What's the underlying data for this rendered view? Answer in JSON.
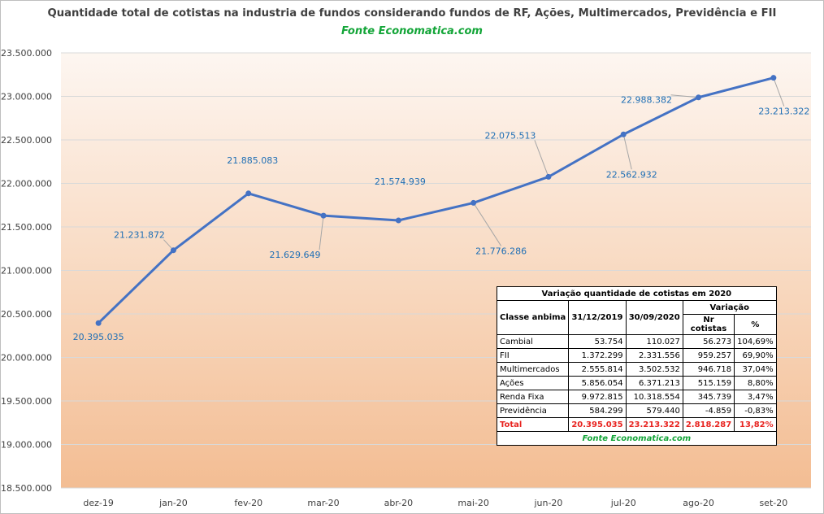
{
  "title": "Quantidade total de cotistas na industria de fundos considerando fundos de RF, Ações, Multimercados, Previdência e FII",
  "subtitle": "Fonte Economatica.com",
  "colors": {
    "line": "#4472c4",
    "label": "#1f6fb5",
    "source_green": "#13a538",
    "total_red": "#e8231f"
  },
  "chart_data": {
    "type": "line",
    "title": "Quantidade total de cotistas na industria de fundos considerando fundos de RF, Ações, Multimercados, Previdência e FII",
    "subtitle": "Fonte Economatica.com",
    "categories": [
      "dez-19",
      "jan-20",
      "fev-20",
      "mar-20",
      "abr-20",
      "mai-20",
      "jun-20",
      "jul-20",
      "ago-20",
      "set-20"
    ],
    "values": [
      20395035,
      21231872,
      21885083,
      21629649,
      21574939,
      21776286,
      22075513,
      22562932,
      22988382,
      23213322
    ],
    "data_labels": [
      "20.395.035",
      "21.231.872",
      "21.885.083",
      "21.629.649",
      "21.574.939",
      "21.776.286",
      "22.075.513",
      "22.562.932",
      "22.988.382",
      "23.213.322"
    ],
    "y_ticks": [
      18500000,
      19000000,
      19500000,
      20000000,
      20500000,
      21000000,
      21500000,
      22000000,
      22500000,
      23000000,
      23500000
    ],
    "y_tick_labels": [
      "18.500.000",
      "19.000.000",
      "19.500.000",
      "20.000.000",
      "20.500.000",
      "21.000.000",
      "21.500.000",
      "22.000.000",
      "22.500.000",
      "23.000.000",
      "23.500.000"
    ],
    "ylim": [
      18500000,
      23500000
    ],
    "grid": true,
    "legend": "none"
  },
  "table": {
    "title": "Variação quantidade de cotistas em 2020",
    "col_class": "Classe anbima",
    "col_2019": "31/12/2019",
    "col_2020": "30/09/2020",
    "col_variacao": "Variação",
    "col_nr_line1": "Nr",
    "col_nr_line2": "cotistas",
    "col_pct": "%",
    "rows": [
      {
        "classe": "Cambial",
        "v2019": "53.754",
        "v2020": "110.027",
        "nr": "56.273",
        "pct": "104,69%"
      },
      {
        "classe": "FII",
        "v2019": "1.372.299",
        "v2020": "2.331.556",
        "nr": "959.257",
        "pct": "69,90%"
      },
      {
        "classe": "Multimercados",
        "v2019": "2.555.814",
        "v2020": "3.502.532",
        "nr": "946.718",
        "pct": "37,04%"
      },
      {
        "classe": "Ações",
        "v2019": "5.856.054",
        "v2020": "6.371.213",
        "nr": "515.159",
        "pct": "8,80%"
      },
      {
        "classe": "Renda Fixa",
        "v2019": "9.972.815",
        "v2020": "10.318.554",
        "nr": "345.739",
        "pct": "3,47%"
      },
      {
        "classe": "Previdência",
        "v2019": "584.299",
        "v2020": "579.440",
        "nr": "-4.859",
        "pct": "-0,83%"
      }
    ],
    "total": {
      "classe": "Total",
      "v2019": "20.395.035",
      "v2020": "23.213.322",
      "nr": "2.818.287",
      "pct": "13,82%"
    },
    "source": "Fonte Economatica.com"
  }
}
